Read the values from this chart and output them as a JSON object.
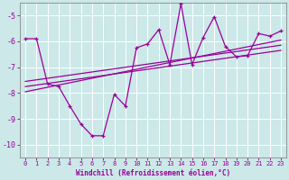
{
  "xlabel": "Windchill (Refroidissement éolien,°C)",
  "bg_color": "#cce8e8",
  "line_color": "#990099",
  "xlim": [
    -0.5,
    23.5
  ],
  "ylim": [
    -10.5,
    -4.5
  ],
  "yticks": [
    -10,
    -9,
    -8,
    -7,
    -6,
    -5
  ],
  "xticks": [
    0,
    1,
    2,
    3,
    4,
    5,
    6,
    7,
    8,
    9,
    10,
    11,
    12,
    13,
    14,
    15,
    16,
    17,
    18,
    19,
    20,
    21,
    22,
    23
  ],
  "line1_x": [
    0,
    1,
    2,
    3,
    4,
    5,
    6,
    7,
    8,
    9,
    10,
    11,
    12,
    13,
    14,
    15,
    16,
    17,
    18,
    19,
    20,
    21,
    22,
    23
  ],
  "line1_y": [
    -5.9,
    -5.9,
    -7.65,
    -7.75,
    -8.5,
    -9.2,
    -9.65,
    -9.65,
    -8.05,
    -8.5,
    -6.25,
    -6.1,
    -5.55,
    -6.9,
    -4.55,
    -6.9,
    -5.85,
    -5.05,
    -6.2,
    -6.6,
    -6.55,
    -5.7,
    -5.8,
    -5.6
  ],
  "line2_x": [
    0,
    23
  ],
  "line2_y": [
    -7.55,
    -6.15
  ],
  "line3_x": [
    0,
    23
  ],
  "line3_y": [
    -7.75,
    -6.35
  ],
  "line4_x": [
    0,
    23
  ],
  "line4_y": [
    -7.95,
    -5.95
  ]
}
